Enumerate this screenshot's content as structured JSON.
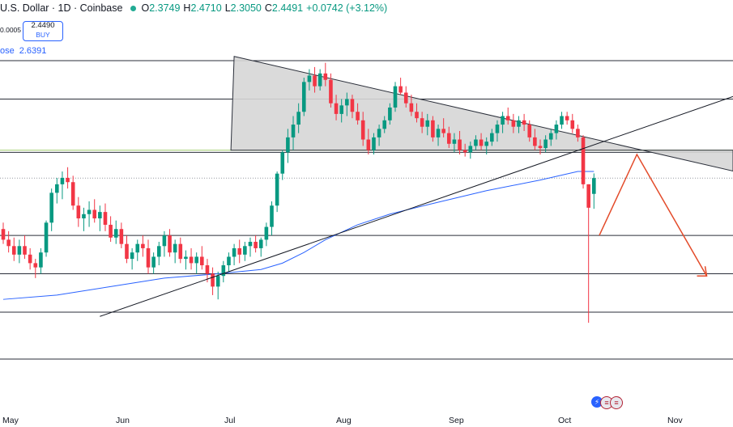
{
  "header": {
    "symbol": "U.S. Dollar · 1D · Coinbase",
    "open_label": "O",
    "open": "2.3749",
    "high_label": "H",
    "high": "2.4710",
    "low_label": "L",
    "low": "2.3050",
    "close_label": "C",
    "close": "2.4491",
    "change": "+0.0742 (+3.12%)"
  },
  "left_tick": "0.0005",
  "buy_button": {
    "price": "2.4490",
    "label": "BUY"
  },
  "ma_label": {
    "key": "ose",
    "value": "2.6391"
  },
  "colors": {
    "up": "#089981",
    "down": "#f23645",
    "ma": "#2962ff",
    "arrow": "#e34b2a",
    "triangle": "#d6d6d6"
  },
  "chart_data": {
    "type": "candlestick",
    "x_axis_labels": [
      "May",
      "Jun",
      "Jul",
      "Aug",
      "Sep",
      "Oct",
      "Nov"
    ],
    "y_range": [
      1.3,
      3.2
    ],
    "horizontal_levels": [
      3.0,
      2.82,
      2.57,
      2.18,
      2.0,
      1.82,
      1.6
    ],
    "candles": [
      [
        2.21,
        2.24,
        2.14,
        2.16
      ],
      [
        2.16,
        2.2,
        2.1,
        2.13
      ],
      [
        2.13,
        2.17,
        2.06,
        2.09
      ],
      [
        2.09,
        2.16,
        2.05,
        2.13
      ],
      [
        2.13,
        2.18,
        2.07,
        2.09
      ],
      [
        2.09,
        2.12,
        2.02,
        2.05
      ],
      [
        2.05,
        2.07,
        1.98,
        2.03
      ],
      [
        2.03,
        2.12,
        2.0,
        2.1
      ],
      [
        2.1,
        2.25,
        2.08,
        2.24
      ],
      [
        2.24,
        2.4,
        2.2,
        2.38
      ],
      [
        2.38,
        2.45,
        2.33,
        2.42
      ],
      [
        2.42,
        2.48,
        2.35,
        2.45
      ],
      [
        2.45,
        2.5,
        2.4,
        2.43
      ],
      [
        2.43,
        2.46,
        2.3,
        2.32
      ],
      [
        2.32,
        2.36,
        2.22,
        2.26
      ],
      [
        2.26,
        2.31,
        2.2,
        2.28
      ],
      [
        2.28,
        2.34,
        2.22,
        2.3
      ],
      [
        2.3,
        2.35,
        2.24,
        2.26
      ],
      [
        2.26,
        2.32,
        2.2,
        2.29
      ],
      [
        2.29,
        2.33,
        2.2,
        2.23
      ],
      [
        2.23,
        2.27,
        2.15,
        2.17
      ],
      [
        2.17,
        2.25,
        2.14,
        2.21
      ],
      [
        2.21,
        2.24,
        2.12,
        2.14
      ],
      [
        2.14,
        2.18,
        2.05,
        2.07
      ],
      [
        2.07,
        2.12,
        2.02,
        2.1
      ],
      [
        2.1,
        2.16,
        2.06,
        2.14
      ],
      [
        2.14,
        2.18,
        2.08,
        2.12
      ],
      [
        2.12,
        2.16,
        2.0,
        2.03
      ],
      [
        2.03,
        2.1,
        2.0,
        2.08
      ],
      [
        2.08,
        2.15,
        2.04,
        2.13
      ],
      [
        2.13,
        2.2,
        2.08,
        2.18
      ],
      [
        2.18,
        2.21,
        2.08,
        2.1
      ],
      [
        2.1,
        2.16,
        2.05,
        2.14
      ],
      [
        2.14,
        2.17,
        2.05,
        2.07
      ],
      [
        2.07,
        2.11,
        2.02,
        2.08
      ],
      [
        2.08,
        2.12,
        2.02,
        2.05
      ],
      [
        2.05,
        2.1,
        2.0,
        2.08
      ],
      [
        2.08,
        2.13,
        2.02,
        2.04
      ],
      [
        2.04,
        2.07,
        1.96,
        2.0
      ],
      [
        2.0,
        2.03,
        1.9,
        1.94
      ],
      [
        1.94,
        2.01,
        1.88,
        1.99
      ],
      [
        1.99,
        2.06,
        1.96,
        2.04
      ],
      [
        2.04,
        2.1,
        2.01,
        2.08
      ],
      [
        2.08,
        2.14,
        2.04,
        2.12
      ],
      [
        2.12,
        2.16,
        2.05,
        2.09
      ],
      [
        2.09,
        2.15,
        2.06,
        2.13
      ],
      [
        2.13,
        2.17,
        2.08,
        2.15
      ],
      [
        2.15,
        2.18,
        2.1,
        2.12
      ],
      [
        2.12,
        2.17,
        2.08,
        2.16
      ],
      [
        2.16,
        2.24,
        2.13,
        2.22
      ],
      [
        2.22,
        2.34,
        2.18,
        2.32
      ],
      [
        2.32,
        2.48,
        2.29,
        2.47
      ],
      [
        2.47,
        2.58,
        2.44,
        2.57
      ],
      [
        2.57,
        2.68,
        2.52,
        2.64
      ],
      [
        2.64,
        2.74,
        2.58,
        2.7
      ],
      [
        2.7,
        2.8,
        2.66,
        2.76
      ],
      [
        2.76,
        2.92,
        2.74,
        2.9
      ],
      [
        2.9,
        2.96,
        2.86,
        2.93
      ],
      [
        2.93,
        2.97,
        2.85,
        2.88
      ],
      [
        2.88,
        2.96,
        2.86,
        2.94
      ],
      [
        2.94,
        2.99,
        2.88,
        2.91
      ],
      [
        2.91,
        2.94,
        2.78,
        2.8
      ],
      [
        2.8,
        2.84,
        2.72,
        2.75
      ],
      [
        2.75,
        2.82,
        2.71,
        2.79
      ],
      [
        2.79,
        2.85,
        2.74,
        2.82
      ],
      [
        2.82,
        2.84,
        2.73,
        2.76
      ],
      [
        2.76,
        2.8,
        2.7,
        2.72
      ],
      [
        2.72,
        2.76,
        2.6,
        2.63
      ],
      [
        2.63,
        2.68,
        2.56,
        2.58
      ],
      [
        2.58,
        2.66,
        2.56,
        2.64
      ],
      [
        2.64,
        2.7,
        2.6,
        2.68
      ],
      [
        2.68,
        2.74,
        2.66,
        2.72
      ],
      [
        2.72,
        2.8,
        2.7,
        2.78
      ],
      [
        2.78,
        2.9,
        2.76,
        2.88
      ],
      [
        2.88,
        2.92,
        2.84,
        2.85
      ],
      [
        2.85,
        2.88,
        2.78,
        2.8
      ],
      [
        2.8,
        2.84,
        2.74,
        2.76
      ],
      [
        2.76,
        2.8,
        2.71,
        2.73
      ],
      [
        2.73,
        2.76,
        2.66,
        2.69
      ],
      [
        2.69,
        2.75,
        2.65,
        2.72
      ],
      [
        2.72,
        2.74,
        2.62,
        2.64
      ],
      [
        2.64,
        2.7,
        2.6,
        2.68
      ],
      [
        2.68,
        2.73,
        2.64,
        2.66
      ],
      [
        2.66,
        2.69,
        2.59,
        2.61
      ],
      [
        2.61,
        2.66,
        2.57,
        2.63
      ],
      [
        2.63,
        2.67,
        2.56,
        2.58
      ],
      [
        2.58,
        2.61,
        2.55,
        2.57
      ],
      [
        2.57,
        2.62,
        2.54,
        2.6
      ],
      [
        2.6,
        2.65,
        2.58,
        2.63
      ],
      [
        2.63,
        2.66,
        2.58,
        2.6
      ],
      [
        2.6,
        2.64,
        2.56,
        2.62
      ],
      [
        2.62,
        2.68,
        2.6,
        2.66
      ],
      [
        2.66,
        2.72,
        2.62,
        2.7
      ],
      [
        2.7,
        2.76,
        2.66,
        2.74
      ],
      [
        2.74,
        2.78,
        2.7,
        2.72
      ],
      [
        2.72,
        2.75,
        2.66,
        2.69
      ],
      [
        2.69,
        2.74,
        2.66,
        2.72
      ],
      [
        2.72,
        2.75,
        2.67,
        2.7
      ],
      [
        2.7,
        2.72,
        2.62,
        2.64
      ],
      [
        2.64,
        2.68,
        2.58,
        2.6
      ],
      [
        2.6,
        2.63,
        2.56,
        2.59
      ],
      [
        2.59,
        2.65,
        2.57,
        2.63
      ],
      [
        2.63,
        2.68,
        2.6,
        2.66
      ],
      [
        2.66,
        2.72,
        2.63,
        2.7
      ],
      [
        2.7,
        2.76,
        2.68,
        2.74
      ],
      [
        2.74,
        2.76,
        2.7,
        2.72
      ],
      [
        2.72,
        2.75,
        2.66,
        2.68
      ],
      [
        2.68,
        2.7,
        2.62,
        2.64
      ],
      [
        2.64,
        2.65,
        2.4,
        2.42
      ],
      [
        2.42,
        2.42,
        1.77,
        2.31
      ],
      [
        2.3749,
        2.471,
        2.305,
        2.4491
      ]
    ],
    "ma": [
      [
        0,
        1.88
      ],
      [
        10,
        1.9
      ],
      [
        20,
        1.94
      ],
      [
        30,
        1.98
      ],
      [
        40,
        2.0
      ],
      [
        48,
        2.02
      ],
      [
        52,
        2.05
      ],
      [
        56,
        2.1
      ],
      [
        60,
        2.16
      ],
      [
        66,
        2.23
      ],
      [
        72,
        2.28
      ],
      [
        80,
        2.33
      ],
      [
        90,
        2.39
      ],
      [
        100,
        2.44
      ],
      [
        107,
        2.48
      ],
      [
        110,
        2.48
      ]
    ],
    "drawings": {
      "triangle": [
        [
          43,
          3.02
        ],
        [
          119,
          2.58
        ],
        [
          43,
          2.58
        ]
      ],
      "ascending_trendline": [
        [
          18,
          1.8
        ],
        [
          130,
          2.78
        ]
      ],
      "projection_arrow": [
        [
          111,
          2.18
        ],
        [
          118,
          2.56
        ],
        [
          131,
          1.99
        ]
      ]
    }
  }
}
